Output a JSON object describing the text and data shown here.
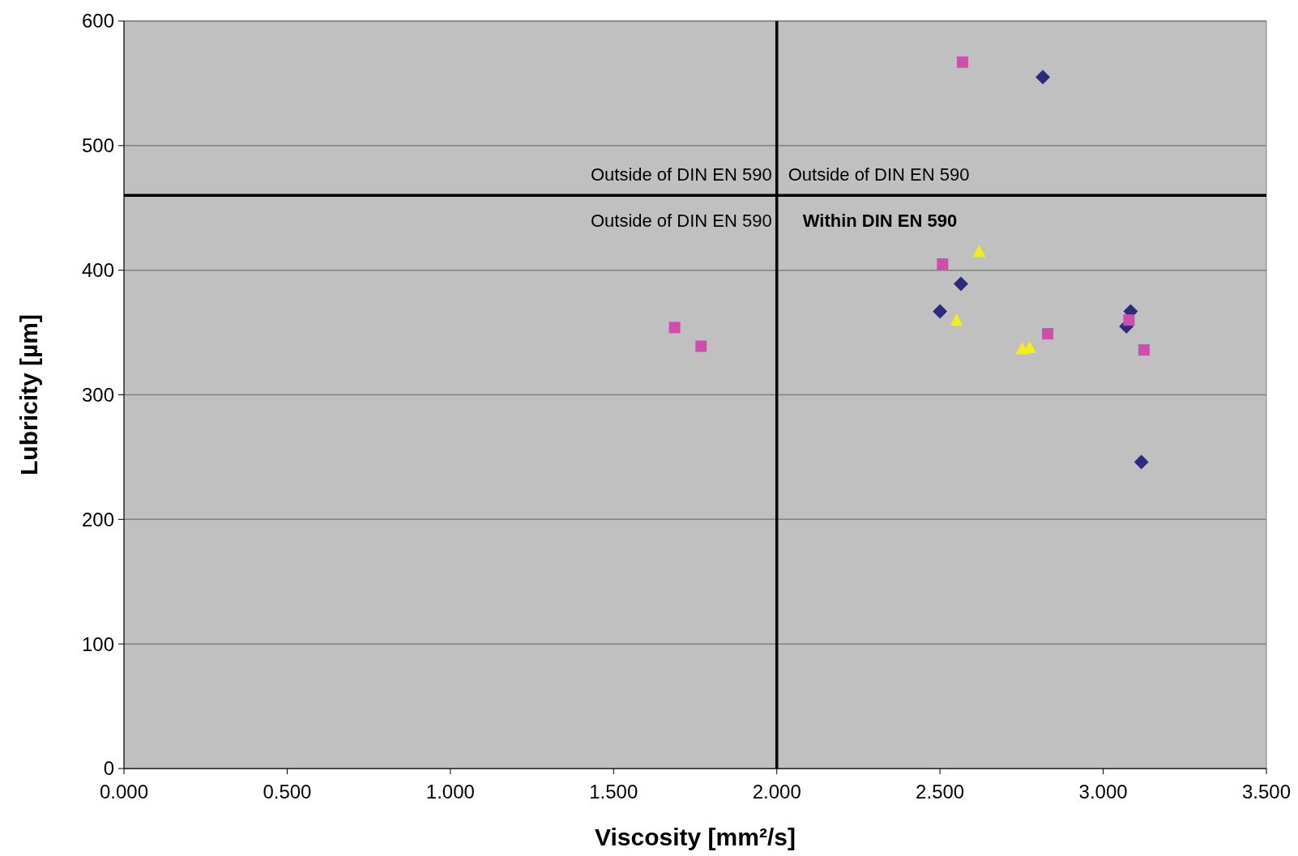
{
  "chart_data": {
    "type": "scatter",
    "xlabel": "Viscosity [mm²/s]",
    "ylabel": "Lubricity [µm]",
    "xlim": [
      0,
      3.5
    ],
    "ylim": [
      0,
      600
    ],
    "xticks": [
      {
        "value": 0,
        "label": "0.000"
      },
      {
        "value": 0.5,
        "label": "0.500"
      },
      {
        "value": 1,
        "label": "1.000"
      },
      {
        "value": 1.5,
        "label": "1.500"
      },
      {
        "value": 2,
        "label": "2.000"
      },
      {
        "value": 2.5,
        "label": "2.500"
      },
      {
        "value": 3,
        "label": "3.000"
      },
      {
        "value": 3.5,
        "label": "3.500"
      }
    ],
    "yticks": [
      0,
      100,
      200,
      300,
      400,
      500,
      600
    ],
    "grid": "y",
    "series": [
      {
        "color": "#2e2a7e",
        "marker": "diamond",
        "x": [
          2.815,
          2.564,
          2.5,
          3.084,
          3.071,
          3.117
        ],
        "values": [
          555,
          389,
          367,
          367,
          355,
          246
        ]
      },
      {
        "color": "#cc4fae",
        "marker": "square",
        "x": [
          2.569,
          2.508,
          1.687,
          1.768,
          2.83,
          3.079,
          3.125
        ],
        "values": [
          567,
          405,
          354,
          339,
          349,
          360,
          336
        ]
      },
      {
        "color": "#f2ee1a",
        "marker": "triangle",
        "x": [
          2.62,
          2.551,
          2.752,
          2.775
        ],
        "values": [
          415,
          360,
          337,
          338
        ]
      }
    ],
    "ref_lines": [
      {
        "axis": "x",
        "value": 2,
        "color": "#000000"
      },
      {
        "axis": "y",
        "value": 460,
        "color": "#000000"
      }
    ],
    "annotations": [
      "Outside of DIN EN 590",
      "Outside of DIN EN 590",
      "Outside of DIN EN 590",
      "Within DIN EN 590"
    ]
  }
}
